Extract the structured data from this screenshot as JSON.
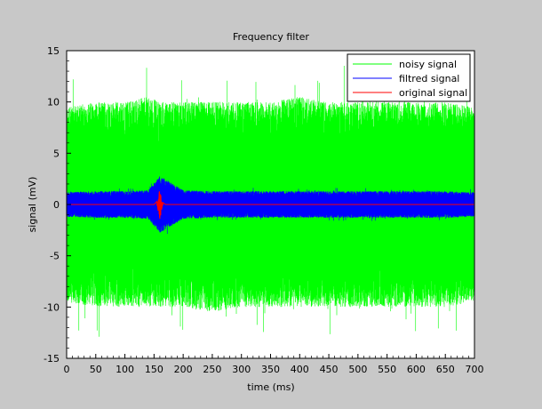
{
  "chart_data": {
    "type": "line",
    "title": "Frequency filter",
    "xlabel": "time (ms)",
    "ylabel": "signal (mV)",
    "xlim": [
      0,
      700
    ],
    "ylim": [
      -15,
      15
    ],
    "xticks": [
      0,
      50,
      100,
      150,
      200,
      250,
      300,
      350,
      400,
      450,
      500,
      550,
      600,
      650,
      700
    ],
    "yticks": [
      -15,
      -10,
      -5,
      0,
      5,
      10,
      15
    ],
    "grid": false,
    "legend_position": "top-right",
    "series": [
      {
        "name": "noisy signal",
        "color": "#00ff00",
        "description": "broadband noise",
        "envelope": {
          "x": [
            0,
            50,
            100,
            140,
            160,
            200,
            250,
            300,
            350,
            400,
            450,
            500,
            550,
            600,
            650,
            700
          ],
          "upper": [
            9.5,
            10,
            10,
            10.5,
            10,
            10,
            10,
            10,
            10,
            10.5,
            10,
            10,
            10,
            10,
            10,
            9.5
          ],
          "lower": [
            -9.5,
            -10,
            -10,
            -10,
            -10,
            -10,
            -10.5,
            -10,
            -10,
            -10,
            -10,
            -10,
            -10,
            -10,
            -10,
            -9.5
          ],
          "peak_max": 14,
          "peak_min": -13
        }
      },
      {
        "name": "filtred signal",
        "color": "#0000ff",
        "envelope": {
          "x": [
            0,
            50,
            100,
            140,
            160,
            200,
            250,
            300,
            350,
            400,
            450,
            500,
            550,
            600,
            650,
            700
          ],
          "upper": [
            1.2,
            1.3,
            1.3,
            1.4,
            2.8,
            1.4,
            1.3,
            1.3,
            1.3,
            1.3,
            1.3,
            1.3,
            1.3,
            1.3,
            1.3,
            1.2
          ],
          "lower": [
            -1.2,
            -1.3,
            -1.3,
            -1.4,
            -2.8,
            -1.4,
            -1.3,
            -1.3,
            -1.3,
            -1.3,
            -1.3,
            -1.3,
            -1.3,
            -1.3,
            -1.3,
            -1.2
          ]
        }
      },
      {
        "name": "original signal",
        "color": "#ff0000",
        "x": [
          0,
          150,
          155,
          157,
          159,
          160,
          161,
          163,
          165,
          170,
          700
        ],
        "y": [
          0,
          0,
          0.3,
          -0.6,
          1.2,
          -1.4,
          1.0,
          -0.5,
          0.2,
          0,
          0
        ]
      }
    ]
  }
}
